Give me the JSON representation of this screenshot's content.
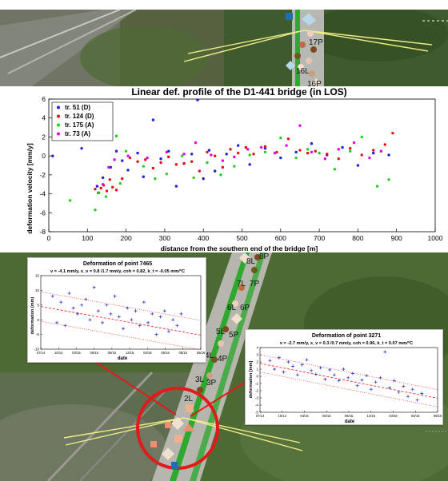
{
  "chart_data": [
    {
      "type": "scatter",
      "title": "Linear def. profile of the D1-441 bridge (in LOS)",
      "xlabel": "distance from the southern end of the bridge [m]",
      "ylabel": "deformation velocity [mm/y]",
      "xlim": [
        0,
        1000
      ],
      "ylim": [
        -8,
        6
      ],
      "xticks": [
        "0",
        "100",
        "200",
        "300",
        "400",
        "500",
        "600",
        "700",
        "800",
        "900",
        "1000"
      ],
      "yticks": [
        "6",
        "4",
        "2",
        "0",
        "-2",
        "-4",
        "-6",
        "-8"
      ],
      "grid": false,
      "legend_position": "top-left",
      "series": [
        {
          "name": "tr. 51 (D)",
          "color": "#1f1fd6",
          "x": [
            10,
            85,
            125,
            140,
            160,
            175,
            190,
            205,
            230,
            245,
            270,
            290,
            310,
            330,
            350,
            370,
            385,
            400,
            415,
            430,
            460,
            490,
            520,
            560,
            600,
            640,
            680,
            720,
            760,
            800,
            840,
            880
          ],
          "y": [
            0.0,
            0.8,
            -3.2,
            -2.3,
            -1.2,
            0.5,
            -0.5,
            -1.5,
            0.3,
            -2.2,
            3.8,
            -0.3,
            0.5,
            -3.2,
            -0.8,
            0.2,
            5.9,
            -2.4,
            0.6,
            -1.6,
            0.2,
            1.1,
            -0.9,
            0.8,
            -0.2,
            0.4,
            1.3,
            0.1,
            0.9,
            -1.0,
            0.3,
            0.1
          ]
        },
        {
          "name": "tr. 124 (D)",
          "color": "#e01010",
          "x": [
            120,
            128,
            135,
            142,
            150,
            158,
            165,
            175,
            190,
            210,
            230,
            250,
            270,
            290,
            310,
            330,
            350,
            370,
            390,
            410,
            430,
            450,
            470,
            490,
            510,
            530,
            560,
            590,
            620,
            650,
            670,
            690,
            720,
            750,
            780,
            810,
            840,
            870,
            890
          ],
          "y": [
            -3.5,
            -3.9,
            -3.4,
            -3.1,
            -3.7,
            -2.5,
            -3.3,
            -3.6,
            -2.4,
            -0.2,
            -0.6,
            -0.4,
            -1.3,
            -0.7,
            -0.1,
            -0.9,
            -0.8,
            -0.6,
            -1.6,
            0.4,
            0.0,
            -1.2,
            0.7,
            0.3,
            0.9,
            0.2,
            1.0,
            0.4,
            1.8,
            0.6,
            0.3,
            0.5,
            0.2,
            -0.3,
            0.8,
            0.1,
            0.6,
            1.2,
            2.4
          ]
        },
        {
          "name": "tr. 175 (A)",
          "color": "#22d022",
          "x": [
            55,
            120,
            130,
            148,
            175,
            185,
            200,
            245,
            275,
            305,
            345,
            375,
            410,
            445,
            480,
            520,
            560,
            600,
            640,
            670,
            700,
            740,
            780,
            810,
            850,
            880
          ],
          "y": [
            -4.7,
            -5.7,
            -3.9,
            -4.3,
            2.1,
            -2.9,
            0.5,
            -1.1,
            -2.4,
            -1.9,
            0.0,
            -2.3,
            -0.7,
            -2.0,
            -1.1,
            0.1,
            0.4,
            1.9,
            -0.2,
            0.7,
            0.3,
            -1.4,
            0.5,
            2.0,
            -3.2,
            -2.5
          ]
        },
        {
          "name": "tr. 73 (A)",
          "color": "#e000e0",
          "x": [
            140,
            155,
            170,
            205,
            255,
            305,
            350,
            380,
            420,
            450,
            480,
            515,
            550,
            585,
            615,
            650,
            680,
            715,
            750,
            790,
            830,
            860
          ],
          "y": [
            -3.0,
            -1.2,
            -0.4,
            0.0,
            -0.2,
            0.4,
            0.2,
            1.4,
            0.1,
            -0.5,
            -0.1,
            0.7,
            0.9,
            0.3,
            1.1,
            3.2,
            0.4,
            -0.3,
            0.7,
            1.4,
            -0.2,
            0.5
          ]
        }
      ]
    },
    {
      "type": "scatter",
      "title": "Deformation of point 7465",
      "subtitle": "v = -4.1 mm/y, s_v = 0.8 /1.7 mm/y, coh = 0.82, k_t = -0.05 mm/°C",
      "xlabel": "date",
      "ylabel": "deformation (mm)",
      "xlim": [
        0,
        27
      ],
      "ylim": [
        -10,
        15
      ],
      "xticks": [
        "07/14",
        "10/14",
        "03/15",
        "05/15",
        "06/15",
        "12/15",
        "03/16",
        "05/16",
        "08/16",
        "09/16"
      ],
      "yticks": [
        "15",
        "10",
        "5",
        "0",
        "-5",
        "-10"
      ],
      "trend": {
        "start": 4.5,
        "slope": -0.36,
        "band": 5
      },
      "series": [
        {
          "name": "observations",
          "color": "#2020c0",
          "x": [
            2,
            2.7,
            3.4,
            4.1,
            4.8,
            5.5,
            6.2,
            6.9,
            7.6,
            8.3,
            9.0,
            9.7,
            10.4,
            11.1,
            11.8,
            12.5,
            13.2,
            13.9,
            14.6,
            15.3,
            16.0,
            16.7,
            17.4,
            18.1,
            18.8,
            19.5,
            20.2,
            20.9,
            21.6,
            22.3,
            23.0,
            23.7
          ],
          "y": [
            8,
            -1,
            6,
            -2,
            9,
            4,
            2,
            5,
            7,
            0,
            11,
            3,
            -1,
            5,
            2,
            8,
            1,
            -3,
            4,
            0,
            3,
            -2,
            6,
            -1,
            2,
            -5,
            1,
            3,
            -4,
            0,
            -2,
            2
          ]
        }
      ]
    },
    {
      "type": "scatter",
      "title": "Deformation of point 3271",
      "subtitle": "v = -2.7 mm/y, s_v = 0.3 /0.7 mm/y, coh = 0.96, k_t = 0.07 mm/°C",
      "xlabel": "date",
      "ylabel": "deformation [mm]",
      "xlim": [
        0,
        27
      ],
      "ylim": [
        -5,
        4
      ],
      "xticks": [
        "07/14",
        "10/14",
        "03/15",
        "05/15",
        "06/15",
        "12/15",
        "03/16",
        "06/16",
        "09/16"
      ],
      "yticks": [
        "4",
        "3",
        "2",
        "1",
        "0",
        "-1",
        "-2",
        "-3",
        "-4",
        "-5"
      ],
      "trend": {
        "start": 1.8,
        "slope": -0.18,
        "band": 1.2
      },
      "series": [
        {
          "name": "observations",
          "color": "#2020c0",
          "x": [
            1.5,
            2.2,
            2.9,
            3.6,
            4.3,
            5.0,
            5.7,
            6.4,
            7.1,
            7.8,
            8.5,
            9.2,
            9.9,
            10.6,
            11.3,
            12.0,
            12.7,
            13.4,
            14.1,
            14.8,
            15.5,
            16.2,
            16.9,
            17.6,
            18.3,
            19.0,
            19.7,
            20.4,
            21.1,
            21.8,
            22.5,
            23.2,
            23.9,
            24.6
          ],
          "y": [
            2.2,
            1.0,
            2.6,
            0.6,
            2.0,
            1.4,
            0.2,
            1.6,
            2.3,
            0.8,
            0.3,
            1.2,
            -0.4,
            0.9,
            0.2,
            -0.6,
            1.0,
            -0.2,
            0.4,
            -1.3,
            -0.5,
            0.1,
            -1.8,
            -0.8,
            -0.2,
            3.4,
            -1.6,
            -0.6,
            -2.2,
            -1.4,
            -2.8,
            -1.8,
            -3.3,
            -2.4
          ]
        }
      ]
    }
  ],
  "map": {
    "point_labels_top": [
      "17P",
      "16L",
      "16P"
    ],
    "point_labels_bottom": [
      "8L",
      "8P",
      "7L",
      "7P",
      "6L",
      "6P",
      "5L",
      "5P",
      "4L",
      "4P",
      "3L",
      "3P",
      "2L"
    ]
  }
}
